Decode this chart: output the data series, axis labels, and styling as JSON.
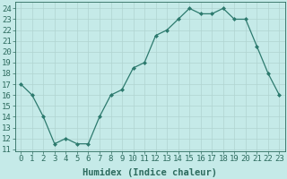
{
  "x": [
    0,
    1,
    2,
    3,
    4,
    5,
    6,
    7,
    8,
    9,
    10,
    11,
    12,
    13,
    14,
    15,
    16,
    17,
    18,
    19,
    20,
    21,
    22,
    23
  ],
  "y": [
    17,
    16,
    14,
    11.5,
    12,
    11.5,
    11.5,
    14,
    16,
    16.5,
    18.5,
    19,
    21.5,
    22,
    23,
    24,
    23.5,
    23.5,
    24,
    23,
    23,
    20.5,
    18,
    16
  ],
  "line_color": "#2d7a6e",
  "marker": "D",
  "marker_size": 2.0,
  "bg_color": "#c5eae8",
  "grid_color": "#b0d4d0",
  "xlabel": "Humidex (Indice chaleur)",
  "ylabel_ticks": [
    11,
    12,
    13,
    14,
    15,
    16,
    17,
    18,
    19,
    20,
    21,
    22,
    23,
    24
  ],
  "ylim": [
    10.8,
    24.6
  ],
  "xlim": [
    -0.5,
    23.5
  ],
  "xtick_labels": [
    "0",
    "1",
    "2",
    "3",
    "4",
    "5",
    "6",
    "7",
    "8",
    "9",
    "10",
    "11",
    "12",
    "13",
    "14",
    "15",
    "16",
    "17",
    "18",
    "19",
    "20",
    "21",
    "22",
    "23"
  ],
  "tick_color": "#2d6b5e",
  "label_fontsize": 6.5,
  "xlabel_fontsize": 7.5,
  "axis_color": "#2d6b5e",
  "linewidth": 0.9,
  "marker_edge_width": 0.5
}
